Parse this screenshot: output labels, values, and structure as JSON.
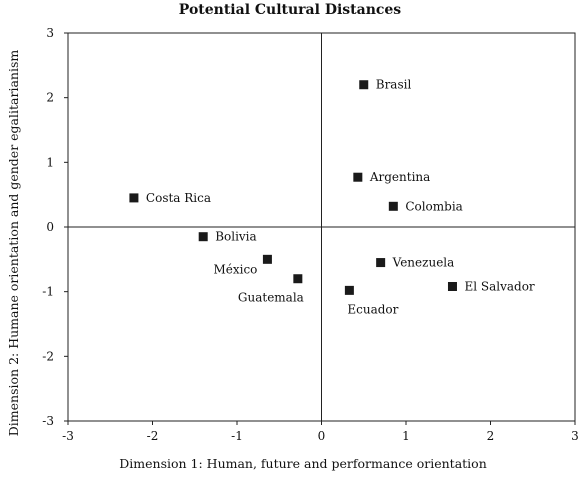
{
  "chart_data": {
    "type": "scatter",
    "title": "Potential Cultural Distances",
    "xlabel": "Dimension 1: Human, future and performance orientation",
    "ylabel": "Dimension 2: Humane orientation and gender egalitarianism",
    "xlim": [
      -3,
      3
    ],
    "ylim": [
      -3,
      3
    ],
    "x_ticks": [
      "-3",
      "-2",
      "-1",
      "0",
      "1",
      "2",
      "3"
    ],
    "y_ticks": [
      "3",
      "2",
      "1",
      "0",
      "-1",
      "-2",
      "-3"
    ],
    "grid": false,
    "points": [
      {
        "label": "Brasil",
        "x": 0.5,
        "y": 2.2,
        "label_pos": "right"
      },
      {
        "label": "Argentina",
        "x": 0.43,
        "y": 0.77,
        "label_pos": "right"
      },
      {
        "label": "Colombia",
        "x": 0.85,
        "y": 0.32,
        "label_pos": "right"
      },
      {
        "label": "Costa Rica",
        "x": -2.22,
        "y": 0.45,
        "label_pos": "right"
      },
      {
        "label": "Bolivia",
        "x": -1.4,
        "y": -0.15,
        "label_pos": "right"
      },
      {
        "label": "México",
        "x": -0.64,
        "y": -0.5,
        "label_pos": "left-below"
      },
      {
        "label": "Guatemala",
        "x": -0.28,
        "y": -0.8,
        "label_pos": "below-left"
      },
      {
        "label": "Venezuela",
        "x": 0.7,
        "y": -0.55,
        "label_pos": "right"
      },
      {
        "label": "Ecuador",
        "x": 0.33,
        "y": -0.98,
        "label_pos": "below"
      },
      {
        "label": "El Salvador",
        "x": 1.55,
        "y": -0.92,
        "label_pos": "right"
      }
    ]
  }
}
